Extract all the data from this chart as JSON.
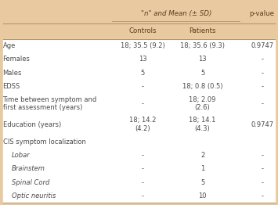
{
  "header_bg": "#e8c9a0",
  "body_bg": "#ffffff",
  "header_text_color": "#5a3e1b",
  "body_text_color": "#4a4a4a",
  "line_color": "#b8956a",
  "col_header": "\"n\" and Mean (± SD)",
  "col_sub1": "Controls",
  "col_sub2": "Patients",
  "col_sub3": "p-value",
  "rows": [
    {
      "label": "Age",
      "italic": false,
      "indent": false,
      "c1": "18; 35.5 (9.2)",
      "c2": "18; 35.6 (9.3)",
      "c3": "0.9747"
    },
    {
      "label": "Females",
      "italic": false,
      "indent": false,
      "c1": "13",
      "c2": "13",
      "c3": "-"
    },
    {
      "label": "Males",
      "italic": false,
      "indent": false,
      "c1": "5",
      "c2": "5",
      "c3": "-"
    },
    {
      "label": "EDSS",
      "italic": false,
      "indent": false,
      "c1": "-",
      "c2": "18; 0.8 (0.5)",
      "c3": "-"
    },
    {
      "label": "Time between symptom and\nfirst assessment (years)",
      "italic": false,
      "indent": false,
      "c1": "-",
      "c2": "18; 2.09\n(2.6)",
      "c3": "-"
    },
    {
      "label": "Education (years)",
      "italic": false,
      "indent": false,
      "c1": "18; 14.2\n(4.2)",
      "c2": "18; 14.1\n(4.3)",
      "c3": "0.9747"
    },
    {
      "label": "CIS symptom localization",
      "italic": false,
      "indent": false,
      "c1": "",
      "c2": "",
      "c3": ""
    },
    {
      "label": "Lobar",
      "italic": true,
      "indent": true,
      "c1": "-",
      "c2": "2",
      "c3": "-"
    },
    {
      "label": "Brainstem",
      "italic": true,
      "indent": true,
      "c1": "-",
      "c2": "1",
      "c3": "-"
    },
    {
      "label": "Spinal Cord",
      "italic": true,
      "indent": true,
      "c1": "-",
      "c2": "5",
      "c3": "-"
    },
    {
      "label": "Optic neuritis",
      "italic": true,
      "indent": true,
      "c1": "-",
      "c2": "10",
      "c3": "-"
    }
  ]
}
